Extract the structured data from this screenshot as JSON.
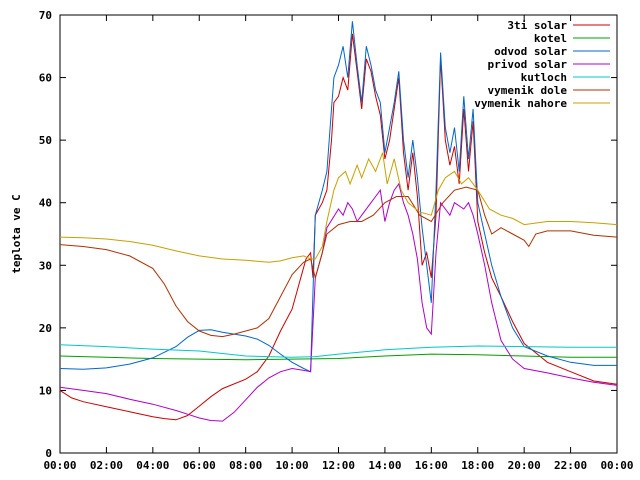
{
  "chart_data": {
    "type": "line",
    "title": "",
    "xlabel": "",
    "ylabel": "teplota ve C",
    "ylim": [
      0,
      70
    ],
    "yticks": [
      0,
      10,
      20,
      30,
      40,
      50,
      60,
      70
    ],
    "xlim": [
      0,
      24
    ],
    "xticks": [
      {
        "v": 0,
        "label": "00:00"
      },
      {
        "v": 2,
        "label": "02:00"
      },
      {
        "v": 4,
        "label": "04:00"
      },
      {
        "v": 6,
        "label": "06:00"
      },
      {
        "v": 8,
        "label": "08:00"
      },
      {
        "v": 10,
        "label": "10:00"
      },
      {
        "v": 12,
        "label": "12:00"
      },
      {
        "v": 14,
        "label": "14:00"
      },
      {
        "v": 16,
        "label": "16:00"
      },
      {
        "v": 18,
        "label": "18:00"
      },
      {
        "v": 20,
        "label": "20:00"
      },
      {
        "v": 22,
        "label": "22:00"
      },
      {
        "v": 24,
        "label": "00:00"
      }
    ],
    "legend_position": "top-right",
    "grid": false,
    "series": [
      {
        "name": "3ti solar",
        "color": "#cc0000",
        "points": [
          [
            0,
            10
          ],
          [
            0.5,
            8.8
          ],
          [
            1,
            8.2
          ],
          [
            2,
            7.4
          ],
          [
            3,
            6.6
          ],
          [
            4,
            5.8
          ],
          [
            4.5,
            5.5
          ],
          [
            5,
            5.3
          ],
          [
            5.5,
            6.0
          ],
          [
            6,
            7.5
          ],
          [
            6.5,
            9.0
          ],
          [
            7,
            10.3
          ],
          [
            8,
            11.8
          ],
          [
            8.5,
            13.0
          ],
          [
            9,
            15.5
          ],
          [
            9.5,
            19.5
          ],
          [
            10,
            23.0
          ],
          [
            10.3,
            27.0
          ],
          [
            10.6,
            31.0
          ],
          [
            10.8,
            32.0
          ],
          [
            10.9,
            28.0
          ],
          [
            11,
            38.0
          ],
          [
            11.3,
            40.0
          ],
          [
            11.5,
            42.0
          ],
          [
            11.7,
            50.0
          ],
          [
            11.8,
            56.0
          ],
          [
            12,
            57.0
          ],
          [
            12.2,
            60.0
          ],
          [
            12.4,
            58.0
          ],
          [
            12.6,
            67.0
          ],
          [
            12.8,
            61.0
          ],
          [
            13,
            55.0
          ],
          [
            13.2,
            63.0
          ],
          [
            13.4,
            61.0
          ],
          [
            13.6,
            57.0
          ],
          [
            13.8,
            54.0
          ],
          [
            14,
            47.0
          ],
          [
            14.2,
            50.0
          ],
          [
            14.4,
            55.0
          ],
          [
            14.6,
            60.0
          ],
          [
            14.8,
            48.0
          ],
          [
            15,
            42.0
          ],
          [
            15.2,
            48.0
          ],
          [
            15.4,
            41.0
          ],
          [
            15.6,
            30.0
          ],
          [
            15.8,
            32.0
          ],
          [
            16,
            28.0
          ],
          [
            16.2,
            38.0
          ],
          [
            16.4,
            63.0
          ],
          [
            16.6,
            50.0
          ],
          [
            16.8,
            46.0
          ],
          [
            17,
            49.0
          ],
          [
            17.2,
            43.0
          ],
          [
            17.4,
            55.0
          ],
          [
            17.6,
            45.0
          ],
          [
            17.8,
            53.0
          ],
          [
            18,
            37.0
          ],
          [
            18.3,
            32.0
          ],
          [
            18.6,
            28.0
          ],
          [
            19,
            25.0
          ],
          [
            19.5,
            21.0
          ],
          [
            20,
            17.5
          ],
          [
            20.5,
            16.0
          ],
          [
            21,
            14.5
          ],
          [
            22,
            13.0
          ],
          [
            23,
            11.5
          ],
          [
            24,
            11.0
          ]
        ]
      },
      {
        "name": "kotel",
        "color": "#00a000",
        "points": [
          [
            0,
            15.5
          ],
          [
            2,
            15.3
          ],
          [
            4,
            15.1
          ],
          [
            6,
            15.0
          ],
          [
            8,
            14.9
          ],
          [
            10,
            15.0
          ],
          [
            12,
            15.1
          ],
          [
            14,
            15.5
          ],
          [
            16,
            15.8
          ],
          [
            18,
            15.7
          ],
          [
            20,
            15.5
          ],
          [
            22,
            15.3
          ],
          [
            24,
            15.3
          ]
        ]
      },
      {
        "name": "odvod solar",
        "color": "#0066cc",
        "points": [
          [
            0,
            13.5
          ],
          [
            1,
            13.4
          ],
          [
            2,
            13.6
          ],
          [
            3,
            14.2
          ],
          [
            4,
            15.2
          ],
          [
            5,
            17.0
          ],
          [
            5.5,
            18.5
          ],
          [
            6,
            19.6
          ],
          [
            6.5,
            19.7
          ],
          [
            7,
            19.3
          ],
          [
            8,
            18.7
          ],
          [
            8.5,
            18.2
          ],
          [
            9,
            17.2
          ],
          [
            9.5,
            15.8
          ],
          [
            10,
            14.5
          ],
          [
            10.5,
            13.5
          ],
          [
            10.8,
            13.0
          ],
          [
            11,
            38.0
          ],
          [
            11.3,
            42.0
          ],
          [
            11.5,
            45.0
          ],
          [
            11.7,
            55.0
          ],
          [
            11.8,
            60.0
          ],
          [
            12,
            62.0
          ],
          [
            12.2,
            65.0
          ],
          [
            12.4,
            60.0
          ],
          [
            12.6,
            69.0
          ],
          [
            12.8,
            62.0
          ],
          [
            13,
            56.0
          ],
          [
            13.2,
            65.0
          ],
          [
            13.4,
            62.0
          ],
          [
            13.6,
            58.0
          ],
          [
            13.8,
            56.0
          ],
          [
            14,
            48.0
          ],
          [
            14.2,
            52.0
          ],
          [
            14.4,
            56.0
          ],
          [
            14.6,
            61.0
          ],
          [
            14.8,
            50.0
          ],
          [
            15,
            44.0
          ],
          [
            15.2,
            50.0
          ],
          [
            15.4,
            44.0
          ],
          [
            15.6,
            36.0
          ],
          [
            15.8,
            30.0
          ],
          [
            16,
            24.0
          ],
          [
            16.2,
            42.0
          ],
          [
            16.4,
            64.0
          ],
          [
            16.6,
            52.0
          ],
          [
            16.8,
            48.0
          ],
          [
            17,
            52.0
          ],
          [
            17.2,
            45.0
          ],
          [
            17.4,
            57.0
          ],
          [
            17.6,
            47.0
          ],
          [
            17.8,
            55.0
          ],
          [
            18,
            40.0
          ],
          [
            18.3,
            35.0
          ],
          [
            18.6,
            30.0
          ],
          [
            19,
            25.0
          ],
          [
            19.5,
            20.0
          ],
          [
            20,
            17.0
          ],
          [
            21,
            15.5
          ],
          [
            22,
            14.5
          ],
          [
            23,
            14.0
          ],
          [
            24,
            14.0
          ]
        ]
      },
      {
        "name": "privod solar",
        "color": "#b000c8",
        "points": [
          [
            0,
            10.5
          ],
          [
            1,
            10.0
          ],
          [
            2,
            9.5
          ],
          [
            3,
            8.6
          ],
          [
            4,
            7.8
          ],
          [
            5,
            6.8
          ],
          [
            5.5,
            6.2
          ],
          [
            6,
            5.6
          ],
          [
            6.5,
            5.2
          ],
          [
            7,
            5.1
          ],
          [
            7.5,
            6.5
          ],
          [
            8,
            8.5
          ],
          [
            8.5,
            10.5
          ],
          [
            9,
            12.0
          ],
          [
            9.5,
            13.0
          ],
          [
            10,
            13.5
          ],
          [
            10.5,
            13.2
          ],
          [
            10.8,
            13.0
          ],
          [
            11,
            28.0
          ],
          [
            11.3,
            32.0
          ],
          [
            11.5,
            36.0
          ],
          [
            12,
            39.0
          ],
          [
            12.2,
            38.0
          ],
          [
            12.4,
            40.0
          ],
          [
            12.6,
            39.0
          ],
          [
            12.8,
            37.0
          ],
          [
            13,
            38.0
          ],
          [
            13.4,
            40.0
          ],
          [
            13.6,
            41.0
          ],
          [
            13.8,
            42.0
          ],
          [
            14,
            37.0
          ],
          [
            14.2,
            40.0
          ],
          [
            14.4,
            42.0
          ],
          [
            14.6,
            43.0
          ],
          [
            14.8,
            40.0
          ],
          [
            15,
            38.0
          ],
          [
            15.2,
            35.0
          ],
          [
            15.4,
            31.0
          ],
          [
            15.6,
            24.0
          ],
          [
            15.8,
            20.0
          ],
          [
            16,
            19.0
          ],
          [
            16.2,
            32.0
          ],
          [
            16.4,
            40.0
          ],
          [
            16.6,
            39.0
          ],
          [
            16.8,
            38.0
          ],
          [
            17,
            40.0
          ],
          [
            17.4,
            39.0
          ],
          [
            17.6,
            40.0
          ],
          [
            17.8,
            38.0
          ],
          [
            18,
            35.0
          ],
          [
            18.3,
            30.0
          ],
          [
            18.6,
            24.0
          ],
          [
            19,
            18.0
          ],
          [
            19.5,
            15.0
          ],
          [
            20,
            13.5
          ],
          [
            21,
            12.8
          ],
          [
            22,
            12.0
          ],
          [
            23,
            11.3
          ],
          [
            24,
            10.8
          ]
        ]
      },
      {
        "name": "kutloch",
        "color": "#00c8c8",
        "points": [
          [
            0,
            17.3
          ],
          [
            2,
            17.0
          ],
          [
            4,
            16.6
          ],
          [
            6,
            16.3
          ],
          [
            8,
            15.5
          ],
          [
            10,
            15.3
          ],
          [
            11,
            15.4
          ],
          [
            12,
            15.8
          ],
          [
            14,
            16.5
          ],
          [
            16,
            16.9
          ],
          [
            18,
            17.1
          ],
          [
            20,
            17.0
          ],
          [
            22,
            16.9
          ],
          [
            24,
            16.9
          ]
        ]
      },
      {
        "name": "vymenik dole",
        "color": "#b03000",
        "points": [
          [
            0,
            33.3
          ],
          [
            1,
            33.0
          ],
          [
            2,
            32.5
          ],
          [
            3,
            31.5
          ],
          [
            4,
            29.5
          ],
          [
            4.5,
            27.0
          ],
          [
            5,
            23.5
          ],
          [
            5.5,
            21.0
          ],
          [
            6,
            19.5
          ],
          [
            6.5,
            18.8
          ],
          [
            7,
            18.6
          ],
          [
            7.5,
            19.0
          ],
          [
            8,
            19.5
          ],
          [
            8.5,
            20.0
          ],
          [
            9,
            21.5
          ],
          [
            9.5,
            25.0
          ],
          [
            10,
            28.5
          ],
          [
            10.5,
            30.5
          ],
          [
            10.8,
            31.0
          ],
          [
            11,
            28.0
          ],
          [
            11.3,
            32.0
          ],
          [
            11.5,
            35.0
          ],
          [
            12,
            36.5
          ],
          [
            12.5,
            37.0
          ],
          [
            13,
            37.0
          ],
          [
            13.5,
            38.0
          ],
          [
            14,
            40.0
          ],
          [
            14.5,
            41.0
          ],
          [
            15,
            41.0
          ],
          [
            15.5,
            38.0
          ],
          [
            16,
            37.0
          ],
          [
            16.5,
            40.0
          ],
          [
            17,
            42.0
          ],
          [
            17.5,
            42.5
          ],
          [
            18,
            42.0
          ],
          [
            18.3,
            38.0
          ],
          [
            18.6,
            35.0
          ],
          [
            19,
            36.0
          ],
          [
            19.5,
            35.0
          ],
          [
            20,
            34.0
          ],
          [
            20.2,
            33.0
          ],
          [
            20.5,
            35.0
          ],
          [
            21,
            35.5
          ],
          [
            22,
            35.5
          ],
          [
            23,
            34.8
          ],
          [
            24,
            34.5
          ]
        ]
      },
      {
        "name": "vymenik nahore",
        "color": "#c8a000",
        "points": [
          [
            0,
            34.5
          ],
          [
            1,
            34.4
          ],
          [
            2,
            34.2
          ],
          [
            3,
            33.8
          ],
          [
            4,
            33.2
          ],
          [
            5,
            32.3
          ],
          [
            6,
            31.5
          ],
          [
            7,
            31.0
          ],
          [
            8,
            30.8
          ],
          [
            9,
            30.5
          ],
          [
            9.5,
            30.7
          ],
          [
            10,
            31.2
          ],
          [
            10.5,
            31.5
          ],
          [
            10.8,
            31.0
          ],
          [
            11,
            31.0
          ],
          [
            11.3,
            33.0
          ],
          [
            11.5,
            37.0
          ],
          [
            11.8,
            42.0
          ],
          [
            12,
            44.0
          ],
          [
            12.3,
            45.0
          ],
          [
            12.5,
            43.0
          ],
          [
            12.8,
            46.0
          ],
          [
            13,
            44.0
          ],
          [
            13.3,
            47.0
          ],
          [
            13.6,
            45.0
          ],
          [
            13.9,
            48.0
          ],
          [
            14.1,
            43.0
          ],
          [
            14.4,
            47.0
          ],
          [
            14.7,
            42.0
          ],
          [
            15,
            40.0
          ],
          [
            15.5,
            38.5
          ],
          [
            16,
            38.0
          ],
          [
            16.3,
            42.0
          ],
          [
            16.6,
            44.0
          ],
          [
            17,
            45.0
          ],
          [
            17.3,
            43.0
          ],
          [
            17.6,
            44.0
          ],
          [
            18,
            42.0
          ],
          [
            18.5,
            39.0
          ],
          [
            19,
            38.0
          ],
          [
            19.5,
            37.5
          ],
          [
            20,
            36.5
          ],
          [
            21,
            37.0
          ],
          [
            22,
            37.0
          ],
          [
            23,
            36.8
          ],
          [
            24,
            36.5
          ]
        ]
      }
    ]
  }
}
